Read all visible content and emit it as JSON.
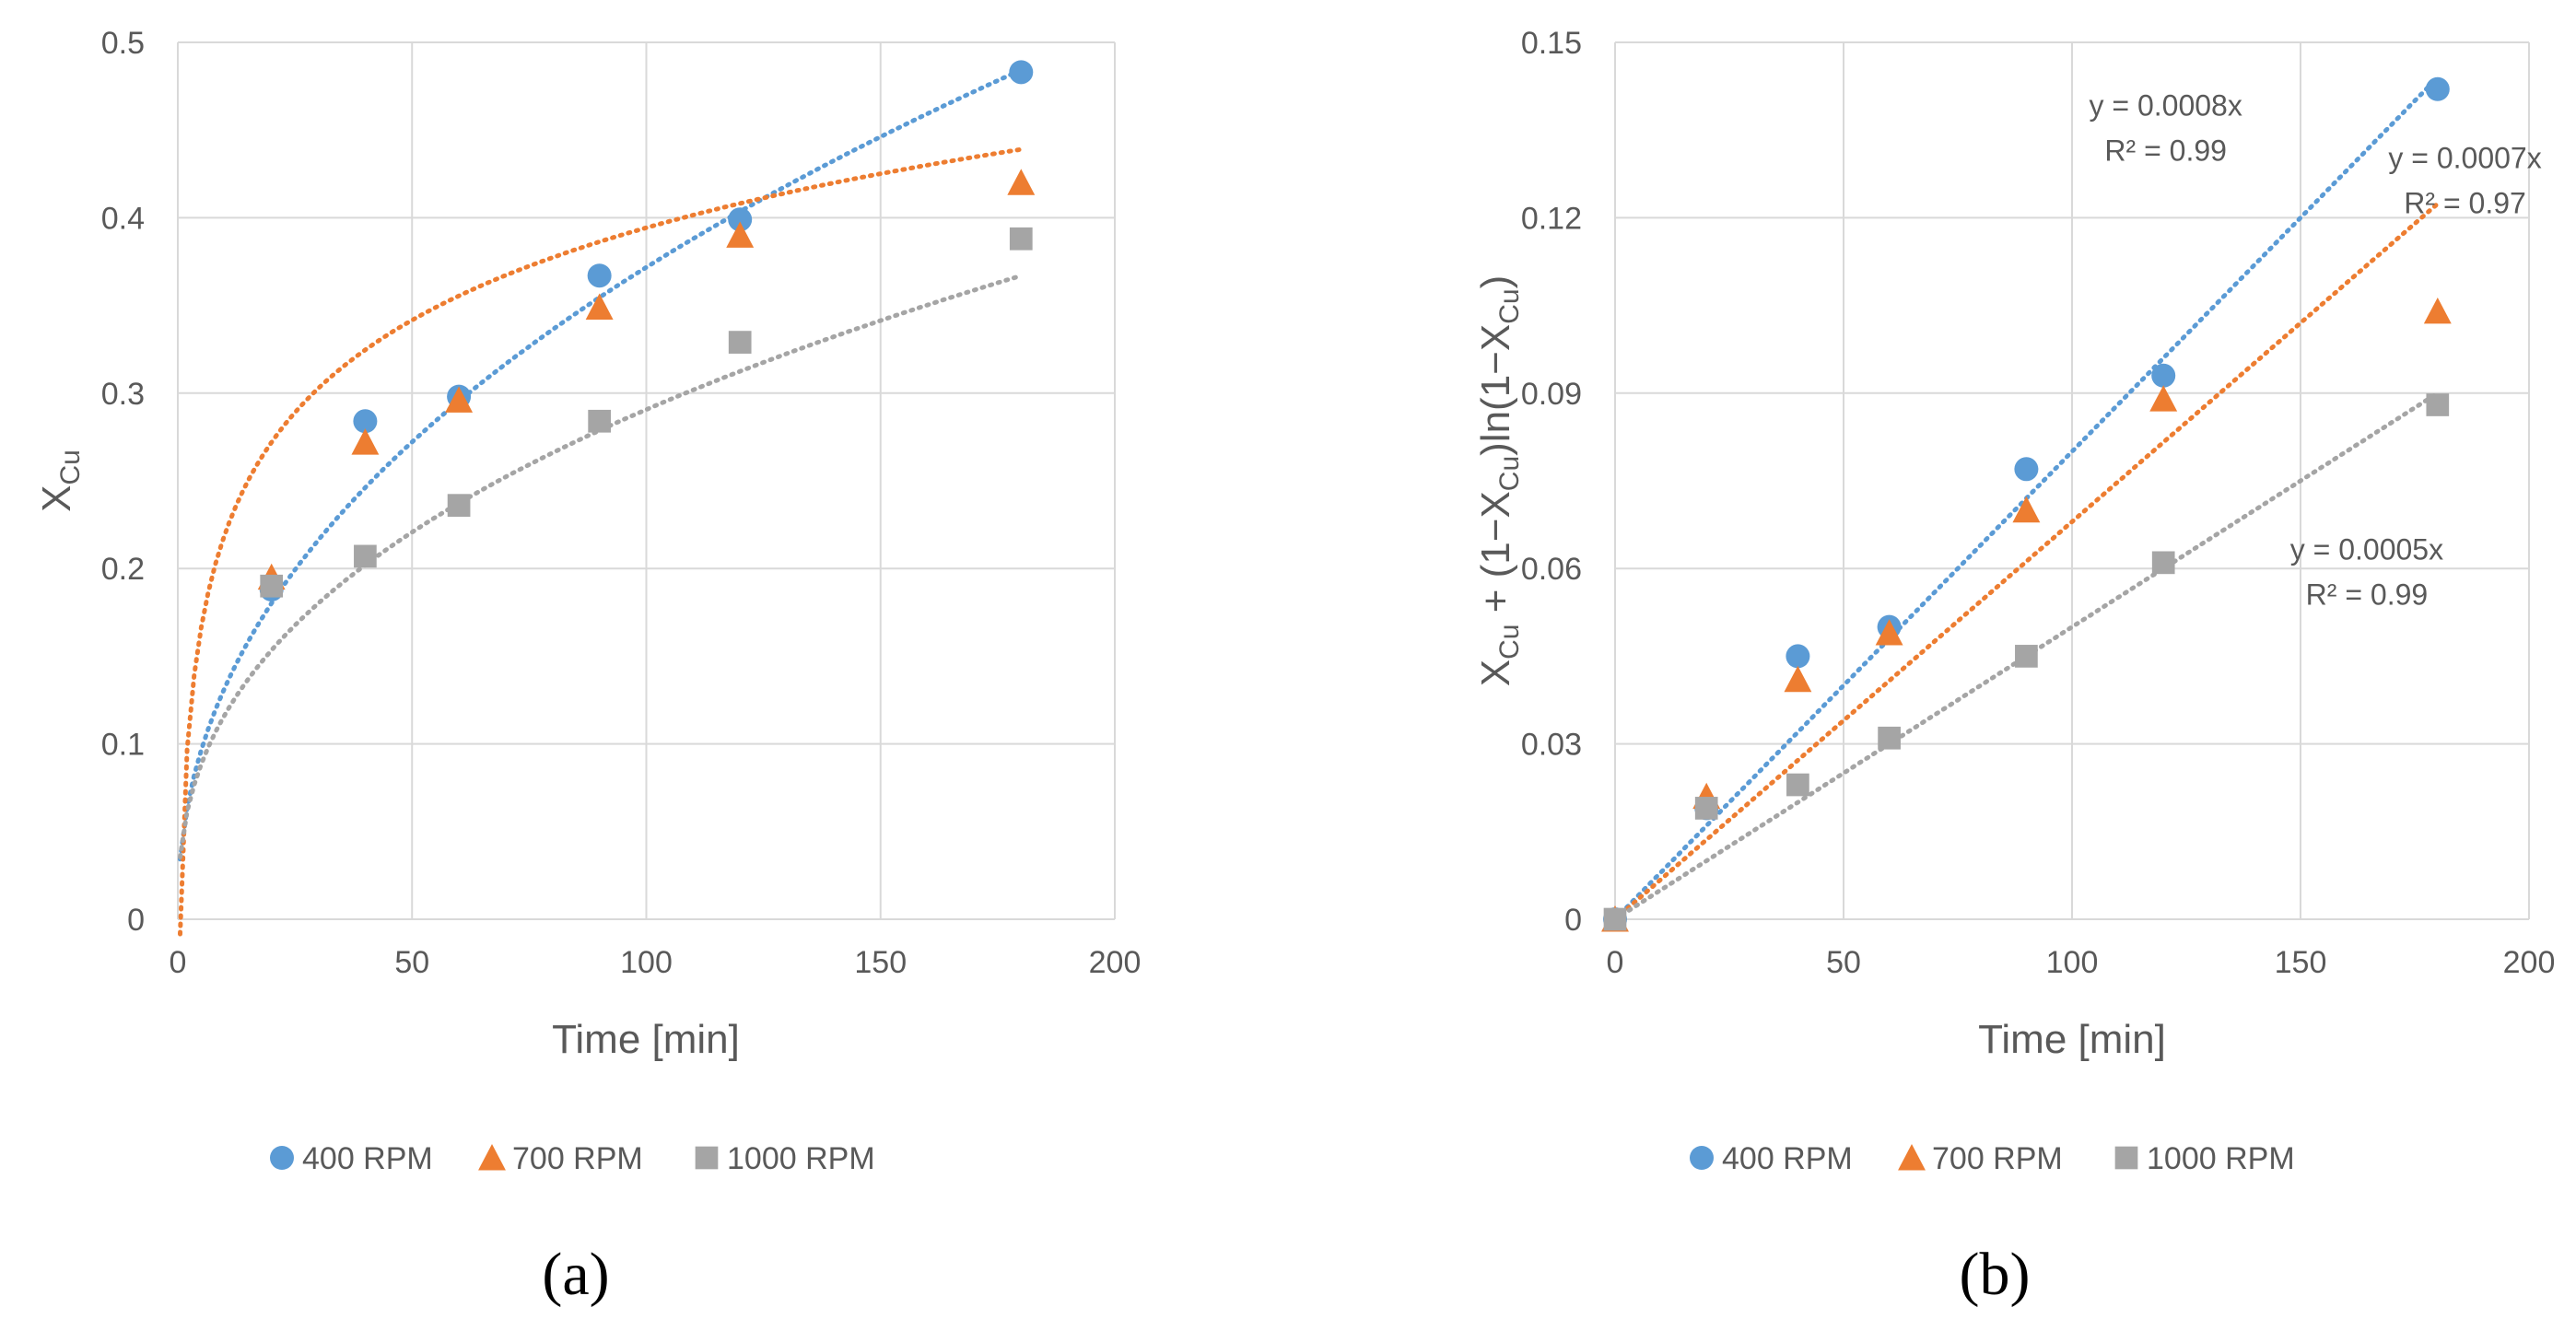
{
  "colors": {
    "s400": "#5b9bd5",
    "s700": "#ed7d31",
    "s1000": "#a5a5a5"
  },
  "chart_data": [
    {
      "type": "scatter",
      "panel_label": "(a)",
      "xlabel": "Time [min]",
      "ylabel_main": "X",
      "ylabel_sub": "Cu",
      "xlim": [
        0,
        200
      ],
      "ylim": [
        0,
        0.5
      ],
      "xticks": [
        0,
        50,
        100,
        150,
        200
      ],
      "xtick_labels": [
        "0",
        "50",
        "100",
        "150",
        "200"
      ],
      "yticks": [
        0,
        0.1,
        0.2,
        0.3,
        0.4,
        0.5
      ],
      "ytick_labels": [
        "0",
        "0.1",
        "0.2",
        "0.3",
        "0.4",
        "0.5"
      ],
      "grid": true,
      "legend_position": "bottom",
      "series": [
        {
          "name": "400 RPM",
          "marker": "circle",
          "color": "#5b9bd5",
          "x": [
            20,
            40,
            60,
            90,
            120,
            180
          ],
          "y": [
            0.188,
            0.284,
            0.298,
            0.367,
            0.399,
            0.483
          ],
          "trend": {
            "kind": "power",
            "a": 0.0468,
            "b": 0.45,
            "x_start": 0.5,
            "x_end": 180
          }
        },
        {
          "name": "700 RPM",
          "marker": "triangle",
          "color": "#ed7d31",
          "x": [
            20,
            40,
            60,
            90,
            120,
            180
          ],
          "y": [
            0.195,
            0.272,
            0.296,
            0.349,
            0.39,
            0.42
          ],
          "trend": {
            "kind": "log",
            "a": 0.076,
            "b": 0.0443,
            "x_start": 0.5,
            "x_end": 180
          }
        },
        {
          "name": "1000 RPM",
          "marker": "square",
          "color": "#a5a5a5",
          "x": [
            20,
            40,
            60,
            90,
            120,
            180
          ],
          "y": [
            0.19,
            0.207,
            0.236,
            0.284,
            0.329,
            0.388
          ],
          "trend": {
            "kind": "power",
            "a": 0.0467,
            "b": 0.397,
            "x_start": 0.5,
            "x_end": 180
          }
        }
      ],
      "annotations": []
    },
    {
      "type": "scatter",
      "panel_label": "(b)",
      "xlabel": "Time [min]",
      "ylabel_main": "X",
      "ylabel_sub": "Cu",
      "ylabel_rest": [
        " + (1−X",
        "Cu",
        ")ln(1−X",
        "Cu",
        ")"
      ],
      "xlim": [
        0,
        200
      ],
      "ylim": [
        0,
        0.15
      ],
      "xticks": [
        0,
        50,
        100,
        150,
        200
      ],
      "xtick_labels": [
        "0",
        "50",
        "100",
        "150",
        "200"
      ],
      "yticks": [
        0,
        0.03,
        0.06,
        0.09,
        0.12,
        0.15
      ],
      "ytick_labels": [
        "0",
        "0.03",
        "0.06",
        "0.09",
        "0.12",
        "0.15"
      ],
      "grid": true,
      "legend_position": "bottom",
      "series": [
        {
          "name": "400 RPM",
          "marker": "circle",
          "color": "#5b9bd5",
          "x": [
            0,
            20,
            40,
            60,
            90,
            120,
            180
          ],
          "y": [
            0,
            0.019,
            0.045,
            0.05,
            0.077,
            0.093,
            0.142
          ],
          "trend": {
            "kind": "linear",
            "slope": 0.0008,
            "x_start": 0,
            "x_end": 180
          }
        },
        {
          "name": "700 RPM",
          "marker": "triangle",
          "color": "#ed7d31",
          "x": [
            0,
            20,
            40,
            60,
            90,
            120,
            180
          ],
          "y": [
            0,
            0.021,
            0.041,
            0.049,
            0.07,
            0.089,
            0.104
          ],
          "trend": {
            "kind": "linear",
            "slope": 0.00068,
            "x_start": 0,
            "x_end": 180
          }
        },
        {
          "name": "1000 RPM",
          "marker": "square",
          "color": "#a5a5a5",
          "x": [
            0,
            20,
            40,
            60,
            90,
            120,
            180
          ],
          "y": [
            0,
            0.019,
            0.023,
            0.031,
            0.045,
            0.061,
            0.088
          ],
          "trend": {
            "kind": "linear",
            "slope": 0.0005,
            "x_start": 0,
            "x_end": 180
          }
        }
      ],
      "annotations": [
        {
          "name": "eq-400",
          "lines": [
            "y = 0.0008x",
            "R² = 0.99"
          ],
          "at_x": 120.5,
          "at_y": 0.1375
        },
        {
          "name": "eq-700",
          "lines": [
            "y = 0.0007x",
            "R² = 0.97"
          ],
          "at_x": 186,
          "at_y": 0.1285
        },
        {
          "name": "eq-1000",
          "lines": [
            "y = 0.0005x",
            "R² = 0.99"
          ],
          "at_x": 164.5,
          "at_y": 0.0615
        }
      ]
    }
  ]
}
